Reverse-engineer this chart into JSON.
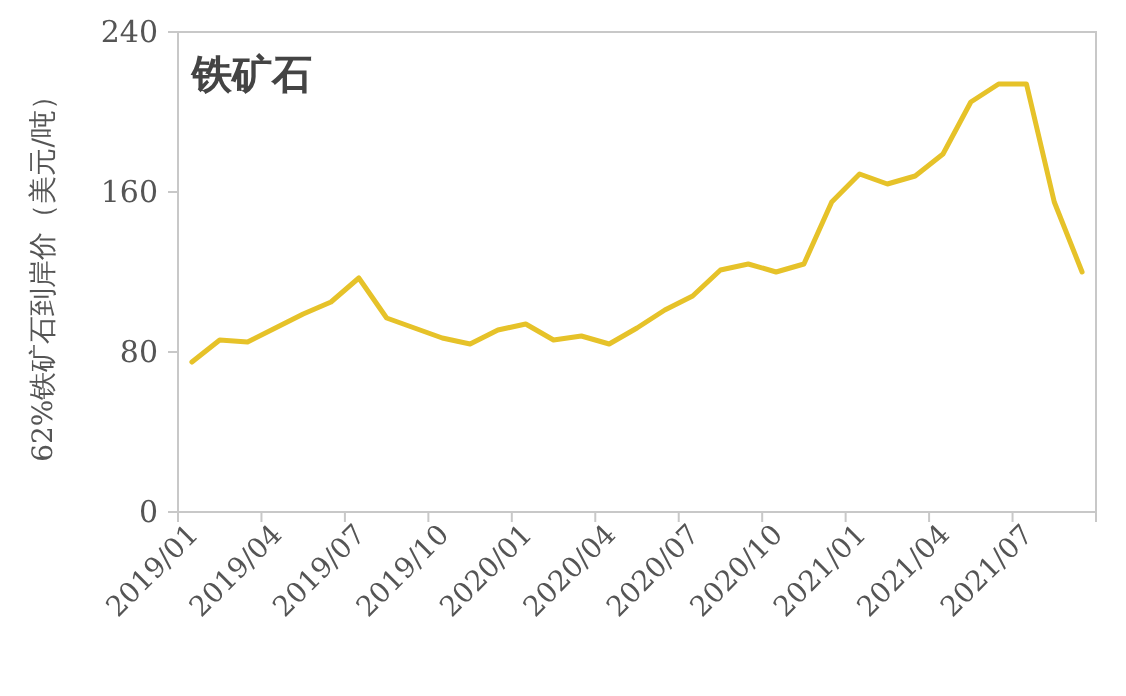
{
  "chart_data": {
    "type": "line",
    "title": "铁矿石",
    "ylabel": "62%铁矿石到岸价（美元/吨）",
    "categories": [
      "2019/01",
      null,
      null,
      "2019/04",
      null,
      null,
      "2019/07",
      null,
      null,
      "2019/10",
      null,
      null,
      "2020/01",
      null,
      null,
      "2020/04",
      null,
      null,
      "2020/07",
      null,
      null,
      "2020/10",
      null,
      null,
      "2021/01",
      null,
      null,
      "2021/04",
      null,
      null,
      "2021/07",
      null,
      null
    ],
    "series": [
      {
        "color": "#e6c229",
        "values": [
          75,
          86,
          85,
          92,
          99,
          105,
          117,
          97,
          92,
          87,
          84,
          91,
          94,
          86,
          88,
          84,
          92,
          101,
          108,
          121,
          124,
          120,
          124,
          155,
          169,
          164,
          168,
          179,
          205,
          214,
          214,
          155,
          120
        ]
      }
    ],
    "ylim": [
      0,
      240
    ],
    "yticks": [
      0,
      80,
      160,
      240
    ]
  }
}
